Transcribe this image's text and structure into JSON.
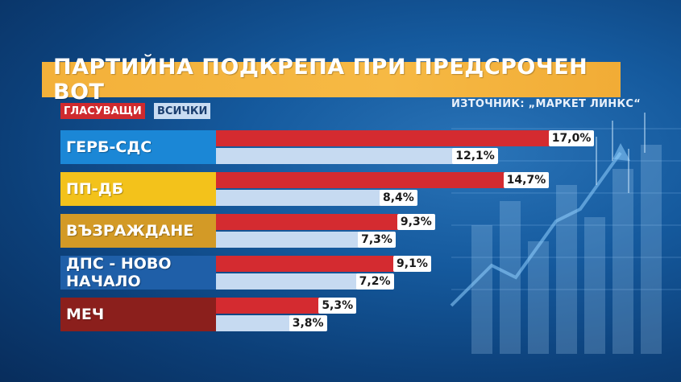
{
  "title": "ПАРТИЙНА ПОДКРЕПА ПРИ ПРЕДСРОЧЕН ВОТ",
  "legend": {
    "voters": "ГЛАСУВАЩИ",
    "all": "ВСИЧКИ"
  },
  "source": "ИЗТОЧНИК: „МАРКЕТ ЛИНКС“",
  "colors": {
    "title_bg": "#f3b13a",
    "voters_bar": "#d42b30",
    "all_bar": "#c6daf1",
    "background": "#155a9e"
  },
  "chart_data": {
    "type": "bar",
    "orientation": "horizontal",
    "title": "ПАРТИЙНА ПОДКРЕПА ПРИ ПРЕДСРОЧЕН ВОТ",
    "categories": [
      "ГЕРБ-СДС",
      "ПП-ДБ",
      "ВЪЗРАЖДАНЕ",
      "ДПС - НОВО НАЧАЛО",
      "МЕЧ"
    ],
    "category_colors": [
      "#1b87d6",
      "#f3c21b",
      "#d39a26",
      "#1f5fa8",
      "#8b1f1c"
    ],
    "series": [
      {
        "name": "ГЛАСУВАЩИ",
        "values": [
          17.0,
          14.7,
          9.3,
          9.1,
          5.3
        ],
        "labels": [
          "17,0%",
          "14,7%",
          "9,3%",
          "9,1%",
          "5,3%"
        ]
      },
      {
        "name": "ВСИЧКИ",
        "values": [
          12.1,
          8.4,
          7.3,
          7.2,
          3.8
        ],
        "labels": [
          "12,1%",
          "8,4%",
          "7,3%",
          "7,2%",
          "3,8%"
        ]
      }
    ],
    "unit": "%",
    "legend_position": "top-left"
  }
}
